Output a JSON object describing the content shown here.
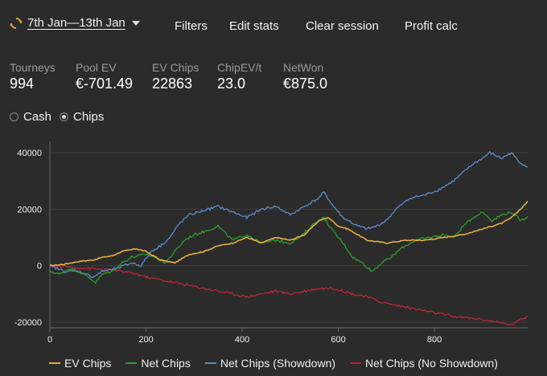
{
  "toolbar": {
    "date_range": "7th Jan—13th Jan",
    "filters": "Filters",
    "edit_stats": "Edit stats",
    "clear_session": "Clear session",
    "profit_calc": "Profit calc"
  },
  "stats": [
    {
      "label": "Tourneys",
      "value": "994"
    },
    {
      "label": "Pool EV",
      "value": "€-701.49"
    },
    {
      "label": "EV Chips",
      "value": "22863"
    },
    {
      "label": "ChipEV/t",
      "value": "23.0"
    },
    {
      "label": "NetWon",
      "value": "€875.0"
    }
  ],
  "mode": {
    "options": [
      "Cash",
      "Chips"
    ],
    "selected": "Chips"
  },
  "colors": {
    "background": "#2b2b2b",
    "ev_chips": "#e3b040",
    "net_chips": "#2e9e2e",
    "net_chips_showdown": "#5b8ec9",
    "net_chips_no_showdown": "#b8283c"
  },
  "chart_data": {
    "type": "line",
    "xlim": [
      0,
      994
    ],
    "ylim": [
      -22000,
      44000
    ],
    "xticks": [
      "0",
      "200",
      "400",
      "600",
      "800"
    ],
    "yticks": [
      "40000",
      "20000",
      "0",
      "-20000"
    ],
    "grid": "horizontal",
    "legend_position": "bottom",
    "series": [
      {
        "name": "EV Chips",
        "color": "#e3b040",
        "points": [
          [
            0,
            0
          ],
          [
            30,
            500
          ],
          [
            60,
            1500
          ],
          [
            90,
            2000
          ],
          [
            110,
            3000
          ],
          [
            130,
            3500
          ],
          [
            150,
            5000
          ],
          [
            180,
            6000
          ],
          [
            200,
            5000
          ],
          [
            230,
            2000
          ],
          [
            260,
            1000
          ],
          [
            290,
            4000
          ],
          [
            320,
            5000
          ],
          [
            350,
            7000
          ],
          [
            380,
            8000
          ],
          [
            410,
            10000
          ],
          [
            440,
            8000
          ],
          [
            470,
            10000
          ],
          [
            500,
            9000
          ],
          [
            530,
            11000
          ],
          [
            560,
            16000
          ],
          [
            580,
            17000
          ],
          [
            600,
            14000
          ],
          [
            620,
            13000
          ],
          [
            640,
            11000
          ],
          [
            660,
            9000
          ],
          [
            700,
            8000
          ],
          [
            740,
            9000
          ],
          [
            780,
            9000
          ],
          [
            820,
            10000
          ],
          [
            860,
            11000
          ],
          [
            900,
            13000
          ],
          [
            940,
            15000
          ],
          [
            960,
            17000
          ],
          [
            985,
            21000
          ],
          [
            994,
            22863
          ]
        ]
      },
      {
        "name": "Net Chips",
        "color": "#2e9e2e",
        "points": [
          [
            0,
            -2000
          ],
          [
            20,
            -3000
          ],
          [
            40,
            -1000
          ],
          [
            60,
            -2000
          ],
          [
            80,
            -4000
          ],
          [
            95,
            -6000
          ],
          [
            110,
            -3000
          ],
          [
            130,
            -2000
          ],
          [
            150,
            1000
          ],
          [
            170,
            3000
          ],
          [
            200,
            4000
          ],
          [
            220,
            3000
          ],
          [
            240,
            1000
          ],
          [
            260,
            5000
          ],
          [
            280,
            9000
          ],
          [
            300,
            11000
          ],
          [
            320,
            12000
          ],
          [
            350,
            14000
          ],
          [
            380,
            9000
          ],
          [
            410,
            11000
          ],
          [
            440,
            8000
          ],
          [
            470,
            9000
          ],
          [
            500,
            8000
          ],
          [
            520,
            10000
          ],
          [
            550,
            15000
          ],
          [
            570,
            17000
          ],
          [
            590,
            12000
          ],
          [
            610,
            8000
          ],
          [
            630,
            3000
          ],
          [
            650,
            1000
          ],
          [
            670,
            -2000
          ],
          [
            690,
            1000
          ],
          [
            710,
            3000
          ],
          [
            730,
            6000
          ],
          [
            760,
            9000
          ],
          [
            790,
            10000
          ],
          [
            820,
            11000
          ],
          [
            840,
            10000
          ],
          [
            860,
            14000
          ],
          [
            880,
            17000
          ],
          [
            900,
            19000
          ],
          [
            920,
            16000
          ],
          [
            940,
            18000
          ],
          [
            960,
            19000
          ],
          [
            980,
            16000
          ],
          [
            994,
            17500
          ]
        ]
      },
      {
        "name": "Net Chips (Showdown)",
        "color": "#5b8ec9",
        "points": [
          [
            0,
            0
          ],
          [
            30,
            -2000
          ],
          [
            60,
            -2000
          ],
          [
            90,
            -4000
          ],
          [
            110,
            -2000
          ],
          [
            140,
            -1000
          ],
          [
            170,
            1000
          ],
          [
            190,
            0
          ],
          [
            210,
            5000
          ],
          [
            230,
            7000
          ],
          [
            250,
            10000
          ],
          [
            270,
            15000
          ],
          [
            290,
            18000
          ],
          [
            310,
            19000
          ],
          [
            330,
            20000
          ],
          [
            350,
            21000
          ],
          [
            380,
            19000
          ],
          [
            410,
            17000
          ],
          [
            440,
            20000
          ],
          [
            470,
            21000
          ],
          [
            500,
            18000
          ],
          [
            530,
            21000
          ],
          [
            560,
            24000
          ],
          [
            570,
            26000
          ],
          [
            590,
            21000
          ],
          [
            610,
            17000
          ],
          [
            640,
            14000
          ],
          [
            660,
            13000
          ],
          [
            680,
            14000
          ],
          [
            700,
            16000
          ],
          [
            720,
            20000
          ],
          [
            750,
            24000
          ],
          [
            780,
            25000
          ],
          [
            810,
            27000
          ],
          [
            840,
            30000
          ],
          [
            860,
            33000
          ],
          [
            880,
            36000
          ],
          [
            900,
            38000
          ],
          [
            915,
            40000
          ],
          [
            940,
            38000
          ],
          [
            960,
            40000
          ],
          [
            975,
            37000
          ],
          [
            994,
            35000
          ]
        ]
      },
      {
        "name": "Net Chips (No Showdown)",
        "color": "#b8283c",
        "points": [
          [
            0,
            0
          ],
          [
            40,
            -500
          ],
          [
            80,
            -1000
          ],
          [
            120,
            -1500
          ],
          [
            150,
            -2000
          ],
          [
            180,
            -3000
          ],
          [
            200,
            -4000
          ],
          [
            230,
            -5000
          ],
          [
            260,
            -6000
          ],
          [
            290,
            -7000
          ],
          [
            320,
            -8000
          ],
          [
            350,
            -9000
          ],
          [
            380,
            -10000
          ],
          [
            410,
            -11000
          ],
          [
            440,
            -10000
          ],
          [
            470,
            -9000
          ],
          [
            500,
            -10000
          ],
          [
            530,
            -9000
          ],
          [
            560,
            -8000
          ],
          [
            590,
            -8000
          ],
          [
            610,
            -9000
          ],
          [
            630,
            -10000
          ],
          [
            660,
            -11000
          ],
          [
            690,
            -13000
          ],
          [
            720,
            -14000
          ],
          [
            750,
            -15000
          ],
          [
            780,
            -16000
          ],
          [
            810,
            -17000
          ],
          [
            840,
            -18000
          ],
          [
            870,
            -18500
          ],
          [
            900,
            -19000
          ],
          [
            930,
            -20000
          ],
          [
            960,
            -21000
          ],
          [
            980,
            -19000
          ],
          [
            994,
            -18000
          ]
        ]
      }
    ]
  }
}
